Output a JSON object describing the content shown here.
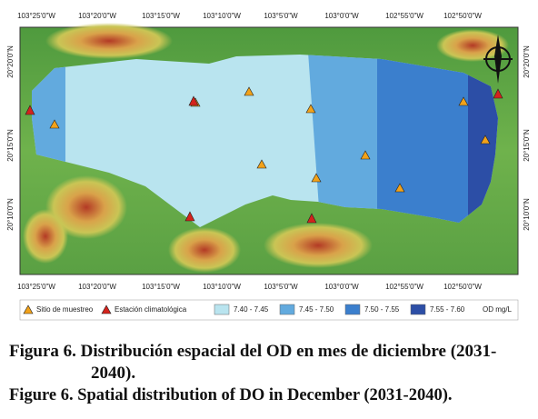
{
  "map": {
    "top_labels": [
      "103°25'0\"W",
      "103°20'0\"W",
      "103°15'0\"W",
      "103°10'0\"W",
      "103°5'0\"W",
      "103°0'0\"W",
      "102°55'0\"W",
      "102°50'0\"W"
    ],
    "bottom_labels": [
      "103°25'0\"W",
      "103°20'0\"W",
      "103°15'0\"W",
      "103°10'0\"W",
      "103°5'0\"W",
      "103°0'0\"W",
      "102°55'0\"W",
      "102°50'0\"W"
    ],
    "left_labels": [
      "20°20'0\"N",
      "20°15'0\"N",
      "20°10'0\"N"
    ],
    "right_labels": [
      "20°20'0\"N",
      "20°15'0\"N",
      "20°10'0\"N"
    ],
    "legend": {
      "site": "Sitio de muestreo",
      "station": "Estación climatológica",
      "classes": [
        {
          "label": "7.40 - 7.45",
          "color": "#b9e4ef"
        },
        {
          "label": "7.45 - 7.50",
          "color": "#62aade"
        },
        {
          "label": "7.50 - 7.55",
          "color": "#3b7fcd"
        },
        {
          "label": "7.55 - 7.60",
          "color": "#2c4ea6"
        }
      ],
      "unit": "OD mg/L"
    }
  },
  "caption": {
    "spanish": "Figura 6. Distribución espacial del OD en mes de diciembre (2031-2040).",
    "english": "Figure 6. Spatial distribution of DO in December (2031-2040)."
  }
}
